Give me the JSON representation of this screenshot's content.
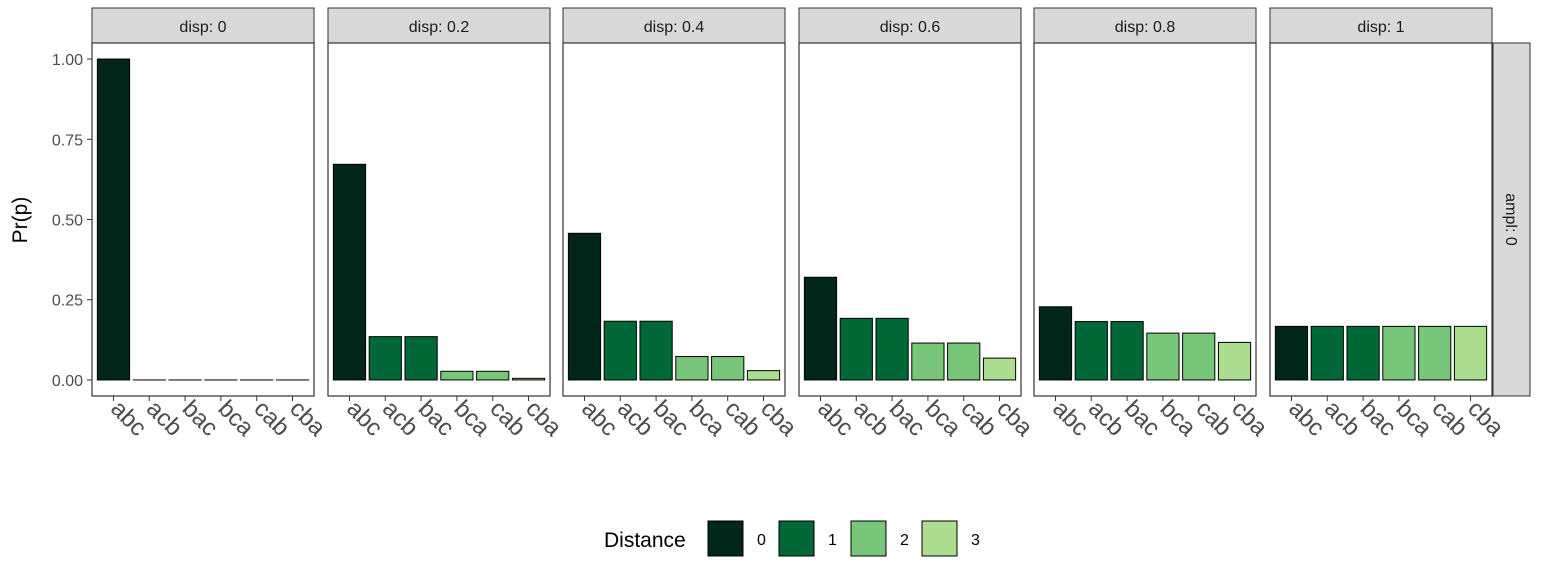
{
  "chart_data": {
    "type": "bar",
    "ylabel": "Pr(p)",
    "ylim": [
      -0.05,
      1.05
    ],
    "yticks": [
      0.0,
      0.25,
      0.5,
      0.75,
      1.0
    ],
    "ytick_labels": [
      "0.00",
      "0.25",
      "0.50",
      "0.75",
      "1.00"
    ],
    "categories": [
      "abc",
      "acb",
      "bac",
      "bca",
      "cab",
      "cba"
    ],
    "distance": [
      0,
      1,
      1,
      2,
      2,
      3
    ],
    "row_strip": "ampl: 0",
    "grid": false,
    "legend": {
      "title": "Distance",
      "position": "bottom",
      "entries": [
        {
          "label": "0",
          "color": "#00261a"
        },
        {
          "label": "1",
          "color": "#006837"
        },
        {
          "label": "2",
          "color": "#78c679"
        },
        {
          "label": "3",
          "color": "#addd8e"
        }
      ]
    },
    "panels": [
      {
        "strip": "disp: 0",
        "values": [
          1.0,
          0.0,
          0.0,
          0.0,
          0.0,
          0.0
        ]
      },
      {
        "strip": "disp: 0.2",
        "values": [
          0.672,
          0.135,
          0.135,
          0.027,
          0.027,
          0.005
        ]
      },
      {
        "strip": "disp: 0.4",
        "values": [
          0.457,
          0.183,
          0.183,
          0.073,
          0.073,
          0.029
        ]
      },
      {
        "strip": "disp: 0.6",
        "values": [
          0.32,
          0.192,
          0.192,
          0.115,
          0.115,
          0.068
        ]
      },
      {
        "strip": "disp: 0.8",
        "values": [
          0.228,
          0.182,
          0.182,
          0.146,
          0.146,
          0.117
        ]
      },
      {
        "strip": "disp: 1",
        "values": [
          0.167,
          0.167,
          0.167,
          0.167,
          0.167,
          0.167
        ]
      }
    ]
  }
}
